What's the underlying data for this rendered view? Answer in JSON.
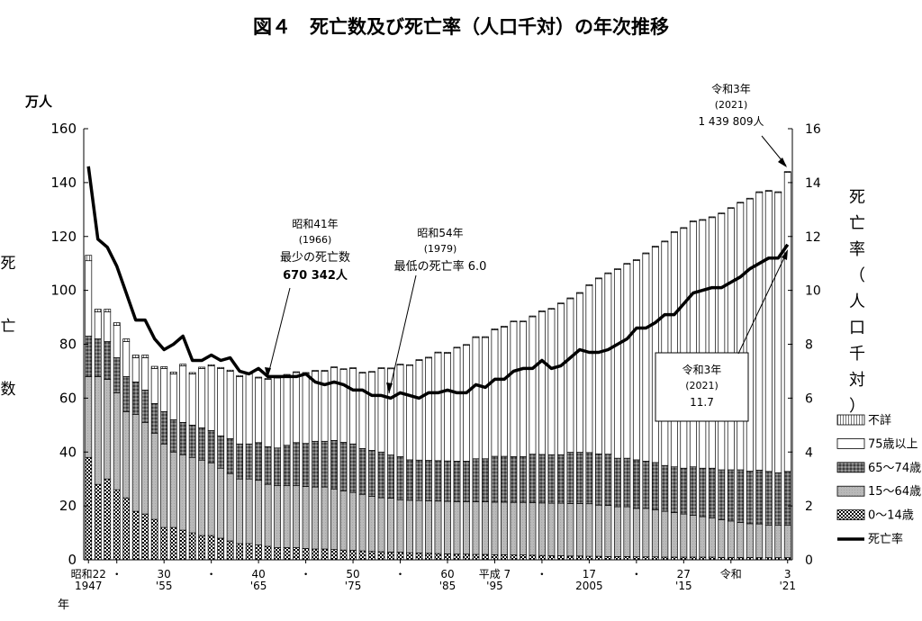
{
  "chart_data": {
    "type": "bar",
    "title": "図４　死亡数及び死亡率（人口千対）の年次推移",
    "ylabel_left": "死亡数",
    "ylabel_left_unit": "万人",
    "ylabel_right": "死亡率（人口千対）",
    "xlabel": "年",
    "ylim_left": [
      0,
      160
    ],
    "ylim_right": [
      0,
      16
    ],
    "yticks_left": [
      "0",
      "20",
      "40",
      "60",
      "80",
      "100",
      "120",
      "140",
      "160"
    ],
    "yticks_right": [
      "0",
      "2",
      "4",
      "6",
      "8",
      "10",
      "12",
      "14",
      "16"
    ],
    "x_start_year": 1947,
    "x_ticks": [
      {
        "top": "昭和22",
        "bottom": "1947"
      },
      {
        "top": "・",
        "bottom": ""
      },
      {
        "top": "30",
        "bottom": "'55"
      },
      {
        "top": "・",
        "bottom": ""
      },
      {
        "top": "40",
        "bottom": "'65"
      },
      {
        "top": "・",
        "bottom": ""
      },
      {
        "top": "50",
        "bottom": "'75"
      },
      {
        "top": "・",
        "bottom": ""
      },
      {
        "top": "60",
        "bottom": "'85"
      },
      {
        "top": "平成 7",
        "bottom": "'95"
      },
      {
        "top": "・",
        "bottom": ""
      },
      {
        "top": "17",
        "bottom": "2005"
      },
      {
        "top": "・",
        "bottom": ""
      },
      {
        "top": "27",
        "bottom": "'15"
      },
      {
        "top": "令和",
        "bottom": ""
      },
      {
        "top": "3",
        "bottom": "'21"
      }
    ],
    "legend": [
      "不詳",
      "75歳以上",
      "65～74歳",
      "15～64歳",
      "0～14歳",
      "死亡率"
    ],
    "legend_position": "bottom-right",
    "series": [
      {
        "name": "0～14歳",
        "values": [
          38,
          28,
          30,
          26,
          23,
          18,
          17,
          15,
          12,
          12,
          11,
          10,
          9,
          9,
          8,
          7,
          6,
          6,
          5.5,
          5,
          4.5,
          4.5,
          4.5,
          4.2,
          4,
          4,
          3.8,
          3.6,
          3.5,
          3.3,
          3.1,
          3,
          2.9,
          2.8,
          2.6,
          2.5,
          2.4,
          2.3,
          2.2,
          2.1,
          2.1,
          2,
          2,
          1.9,
          1.9,
          1.8,
          1.8,
          1.7,
          1.6,
          1.5,
          1.5,
          1.4,
          1.4,
          1.3,
          1.3,
          1.2,
          1.2,
          1.2,
          1.1,
          1.1,
          1.1,
          1,
          1,
          1,
          1,
          1,
          1,
          0.9,
          0.9,
          0.9,
          0.9,
          0.8,
          0.8,
          0.8,
          0.8
        ]
      },
      {
        "name": "15～64歳",
        "values": [
          30,
          40,
          37,
          36,
          32,
          36,
          34,
          32,
          31,
          28,
          28,
          28,
          28,
          27,
          26,
          25,
          24,
          24,
          24,
          23,
          23,
          23,
          23,
          23,
          23,
          23,
          22.5,
          22,
          21.5,
          21,
          20.5,
          20,
          20,
          19.5,
          19.5,
          19.5,
          19.5,
          19.5,
          19.5,
          19.5,
          19.5,
          19.5,
          19.5,
          19.5,
          19.5,
          19.5,
          19.5,
          19.5,
          19.5,
          19.5,
          19.5,
          19.5,
          19.5,
          19.5,
          19,
          19,
          18.5,
          18.5,
          18,
          18,
          17.5,
          17,
          16.5,
          16,
          15.5,
          15,
          14.5,
          14,
          13.5,
          13,
          12.5,
          12.5,
          12,
          12,
          12
        ]
      },
      {
        "name": "65～74歳",
        "values": [
          15,
          14,
          14,
          13,
          13,
          12,
          12,
          11,
          12,
          12,
          12,
          12,
          12,
          12,
          12,
          13,
          13,
          13,
          14,
          14,
          14,
          15,
          16,
          16,
          17,
          17,
          18,
          18,
          18,
          17,
          17,
          17,
          16,
          16,
          15,
          15,
          15,
          15,
          15,
          15,
          15,
          16,
          16,
          17,
          17,
          17,
          17,
          18,
          18,
          18,
          18,
          19,
          19,
          19,
          19,
          19,
          18,
          18,
          18,
          17.5,
          17.5,
          17,
          17,
          17,
          18,
          18,
          18.5,
          18.5,
          19,
          19.5,
          19.5,
          20,
          20,
          19.5,
          20
        ]
      },
      {
        "name": "75歳以上",
        "values": [
          28,
          10,
          11,
          12,
          13,
          9,
          12,
          13,
          16,
          17,
          21,
          19,
          22,
          24,
          25,
          25,
          25,
          26,
          24,
          25,
          26,
          26,
          26,
          26,
          26,
          26,
          27,
          27,
          28,
          28,
          29,
          31,
          32,
          34,
          35,
          37,
          38,
          40,
          40,
          42,
          43,
          45,
          45,
          47,
          48,
          50,
          50,
          51,
          53,
          54,
          56,
          57,
          59,
          62,
          65,
          67,
          70,
          72,
          74,
          77,
          80,
          83,
          87,
          89,
          91,
          92,
          93,
          95,
          97,
          99,
          101,
          103,
          104,
          104,
          111
        ]
      },
      {
        "name": "不詳",
        "values": [
          2,
          1,
          1,
          1,
          1,
          1,
          1,
          0.8,
          0.7,
          0.7,
          0.6,
          0.5,
          0.5,
          0.4,
          0.4,
          0.4,
          0.4,
          0.3,
          0.3,
          0.3,
          0.3,
          0.3,
          0.3,
          0.3,
          0.3,
          0.3,
          0.3,
          0.3,
          0.3,
          0.3,
          0.3,
          0.3,
          0.3,
          0.3,
          0.3,
          0.3,
          0.3,
          0.3,
          0.3,
          0.3,
          0.3,
          0.3,
          0.3,
          0.3,
          0.3,
          0.3,
          0.3,
          0.3,
          0.3,
          0.3,
          0.3,
          0.3,
          0.3,
          0.3,
          0.3,
          0.3,
          0.3,
          0.3,
          0.3,
          0.3,
          0.3,
          0.3,
          0.3,
          0.3,
          0.3,
          0.3,
          0.3,
          0.3,
          0.3,
          0.3,
          0.3,
          0.3,
          0.3,
          0.3,
          0.3
        ]
      },
      {
        "name": "死亡率",
        "values": [
          14.6,
          11.9,
          11.6,
          10.9,
          9.9,
          8.9,
          8.9,
          8.2,
          7.8,
          8.0,
          8.3,
          7.4,
          7.4,
          7.6,
          7.4,
          7.5,
          7.0,
          6.9,
          7.1,
          6.8,
          6.8,
          6.8,
          6.8,
          6.9,
          6.6,
          6.5,
          6.6,
          6.5,
          6.3,
          6.3,
          6.1,
          6.1,
          6.0,
          6.2,
          6.1,
          6.0,
          6.2,
          6.2,
          6.3,
          6.2,
          6.2,
          6.5,
          6.4,
          6.7,
          6.7,
          7.0,
          7.1,
          7.1,
          7.4,
          7.1,
          7.2,
          7.5,
          7.8,
          7.7,
          7.7,
          7.8,
          8.0,
          8.2,
          8.6,
          8.6,
          8.8,
          9.1,
          9.1,
          9.5,
          9.9,
          10.0,
          10.1,
          10.1,
          10.3,
          10.5,
          10.8,
          11.0,
          11.2,
          11.2,
          11.7
        ]
      }
    ],
    "annotations": [
      {
        "lines": [
          "昭和41年",
          "(1966)",
          "最少の死亡数",
          "670 342人"
        ]
      },
      {
        "lines": [
          "昭和54年",
          "(1979)",
          "最低の死亡率 6.0"
        ]
      },
      {
        "lines": [
          "令和3年",
          "(2021)",
          "1 439 809人"
        ]
      },
      {
        "lines": [
          "令和3年",
          "(2021)",
          "11.7"
        ]
      }
    ]
  }
}
